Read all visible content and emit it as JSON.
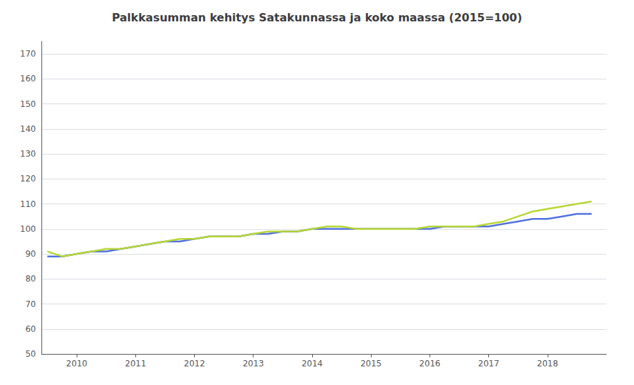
{
  "chart_data": {
    "type": "line",
    "title": "Palkkasumman kehitys Satakunnassa ja koko maassa (2015=100)",
    "x": [
      2009.5,
      2009.75,
      2010.0,
      2010.25,
      2010.5,
      2010.75,
      2011.0,
      2011.25,
      2011.5,
      2011.75,
      2012.0,
      2012.25,
      2012.5,
      2012.75,
      2013.0,
      2013.25,
      2013.5,
      2013.75,
      2014.0,
      2014.25,
      2014.5,
      2014.75,
      2015.0,
      2015.25,
      2015.5,
      2015.75,
      2016.0,
      2016.25,
      2016.5,
      2016.75,
      2017.0,
      2017.25,
      2017.5,
      2017.75,
      2018.0,
      2018.25,
      2018.5,
      2018.75
    ],
    "series": [
      {
        "values": [
          89,
          89,
          90,
          91,
          91,
          92,
          93,
          94,
          95,
          95,
          96,
          97,
          97,
          97,
          98,
          98,
          99,
          99,
          100,
          100,
          100,
          100,
          100,
          100,
          100,
          100,
          100,
          101,
          101,
          101,
          101,
          102,
          103,
          104,
          104,
          105,
          106,
          106
        ]
      },
      {
        "values": [
          91,
          89,
          90,
          91,
          92,
          92,
          93,
          94,
          95,
          96,
          96,
          97,
          97,
          97,
          98,
          99,
          99,
          99,
          100,
          101,
          101,
          100,
          100,
          100,
          100,
          100,
          101,
          101,
          101,
          101,
          102,
          103,
          105,
          107,
          108,
          109,
          110,
          111
        ]
      }
    ],
    "xlim": [
      2009.4,
      2019.0
    ],
    "xticks": [
      2010,
      2011,
      2012,
      2013,
      2014,
      2015,
      2016,
      2017,
      2018
    ],
    "ylim": [
      50,
      175
    ],
    "yticks": [
      50,
      60,
      70,
      80,
      90,
      100,
      110,
      120,
      130,
      140,
      150,
      160,
      170
    ],
    "grid": true
  }
}
